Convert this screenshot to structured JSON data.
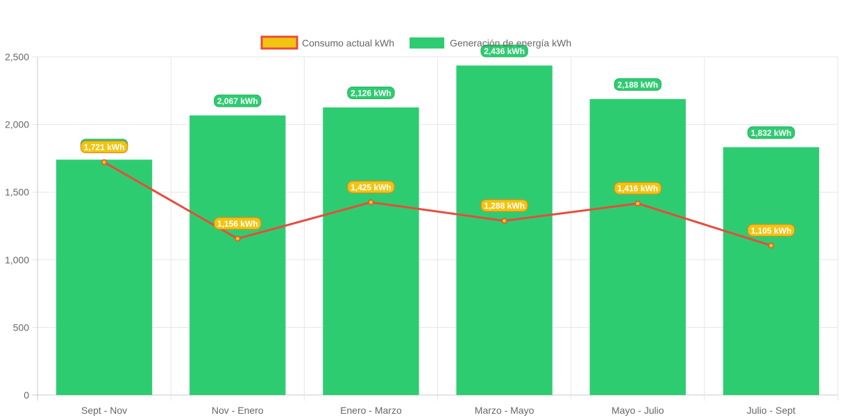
{
  "chart_data": {
    "type": "bar",
    "categories": [
      "Sept - Nov",
      "Nov - Enero",
      "Enero - Marzo",
      "Marzo - Mayo",
      "Mayo - Julio",
      "Julio - Sept"
    ],
    "series": [
      {
        "name": "Consumo actual kWh",
        "type": "line",
        "values": [
          1721,
          1156,
          1425,
          1288,
          1416,
          1105
        ],
        "labels": [
          "1,721 kWh",
          "1,156 kWh",
          "1,425 kWh",
          "1,288 kWh",
          "1,416 kWh",
          "1,105 kWh"
        ],
        "color": "#e74c3c",
        "label_color": "#f1c40f"
      },
      {
        "name": "Generación de energía kWh",
        "type": "bar",
        "values": [
          1740,
          2067,
          2126,
          2436,
          2188,
          1832
        ],
        "labels": [
          "1,740 kWh",
          "2,067 kWh",
          "2,126 kWh",
          "2,436 kWh",
          "2,188 kWh",
          "1,832 kWh"
        ],
        "color": "#2ecc71"
      }
    ],
    "ylim": [
      0,
      2500
    ],
    "yticks": [
      "0",
      "500",
      "1,000",
      "1,500",
      "2,000",
      "2,500"
    ],
    "legend": "top",
    "grid": true
  }
}
